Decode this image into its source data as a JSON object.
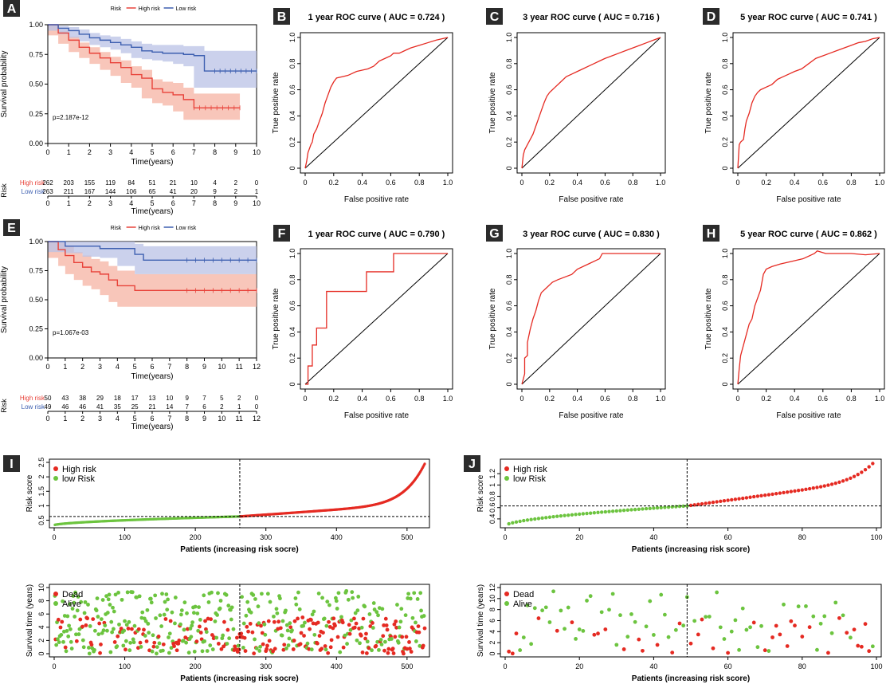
{
  "colors": {
    "high": "#e8433a",
    "low": "#3d5fb0",
    "green": "#6cc43f",
    "red": "#e52a22",
    "high_band": "#f5b3a3",
    "low_band": "#b9c2e6"
  },
  "chart_data": [
    {
      "id": "A",
      "type": "line",
      "badge": "A",
      "legend_title": "Risk",
      "legend": [
        "High risk",
        "Low risk"
      ],
      "xlabel": "Time(years)",
      "ylabel": "Survival probability",
      "xlim": [
        0,
        10
      ],
      "ylim": [
        0,
        1
      ],
      "xticks": [
        0,
        1,
        2,
        3,
        4,
        5,
        6,
        7,
        8,
        9,
        10
      ],
      "yticks": [
        0,
        0.25,
        0.5,
        0.75,
        1.0
      ],
      "ytick_labels": [
        "0.00",
        "0.25",
        "0.50",
        "0.75",
        "1.00"
      ],
      "annotation": "p=2.187e-12",
      "series": [
        {
          "name": "High risk",
          "x": [
            0,
            0.5,
            1,
            1.5,
            2,
            2.5,
            3,
            3.5,
            4,
            4.5,
            5,
            5.5,
            6,
            6.5,
            7,
            8,
            9.2
          ],
          "y": [
            1,
            0.93,
            0.87,
            0.81,
            0.76,
            0.72,
            0.68,
            0.64,
            0.58,
            0.55,
            0.46,
            0.43,
            0.41,
            0.37,
            0.3,
            0.3,
            0.3
          ],
          "lower": [
            1,
            0.91,
            0.84,
            0.77,
            0.72,
            0.67,
            0.62,
            0.57,
            0.51,
            0.47,
            0.38,
            0.34,
            0.32,
            0.27,
            0.2,
            0.2,
            0.2
          ],
          "upper": [
            1,
            0.95,
            0.9,
            0.85,
            0.81,
            0.77,
            0.73,
            0.7,
            0.65,
            0.62,
            0.54,
            0.52,
            0.51,
            0.47,
            0.42,
            0.42,
            0.42
          ]
        },
        {
          "name": "Low risk",
          "x": [
            0,
            0.5,
            1,
            1.5,
            2,
            2.5,
            3,
            3.5,
            4,
            4.5,
            5,
            5.5,
            6,
            6.5,
            7,
            7.5,
            8,
            9,
            10
          ],
          "y": [
            1,
            0.97,
            0.95,
            0.92,
            0.89,
            0.87,
            0.85,
            0.83,
            0.81,
            0.78,
            0.77,
            0.76,
            0.76,
            0.75,
            0.74,
            0.61,
            0.61,
            0.61,
            0.61
          ],
          "lower": [
            1,
            0.95,
            0.92,
            0.89,
            0.86,
            0.83,
            0.81,
            0.79,
            0.76,
            0.72,
            0.71,
            0.7,
            0.69,
            0.67,
            0.65,
            0.47,
            0.47,
            0.47,
            0.47
          ],
          "upper": [
            1,
            0.99,
            0.98,
            0.96,
            0.93,
            0.91,
            0.9,
            0.88,
            0.86,
            0.84,
            0.83,
            0.83,
            0.83,
            0.82,
            0.82,
            0.78,
            0.78,
            0.78,
            0.78
          ]
        }
      ],
      "risk_table": {
        "title": "Risk",
        "xlabel": "Time(years)",
        "xticks": [
          0,
          1,
          2,
          3,
          4,
          5,
          6,
          7,
          8,
          9,
          10
        ],
        "rows": [
          {
            "name": "High risk",
            "values": [
              "262",
              "203",
              "155",
              "119",
              "84",
              "51",
              "21",
              "10",
              "4",
              "2",
              "0"
            ]
          },
          {
            "name": "Low risk",
            "values": [
              "263",
              "211",
              "167",
              "144",
              "106",
              "65",
              "41",
              "20",
              "9",
              "2",
              "1"
            ]
          }
        ]
      }
    },
    {
      "id": "E",
      "type": "line",
      "badge": "E",
      "legend_title": "Risk",
      "legend": [
        "High risk",
        "Low risk"
      ],
      "xlabel": "Time(years)",
      "ylabel": "Survival probability",
      "xlim": [
        0,
        12
      ],
      "ylim": [
        0,
        1
      ],
      "xticks": [
        0,
        1,
        2,
        3,
        4,
        5,
        6,
        7,
        8,
        9,
        10,
        11,
        12
      ],
      "yticks": [
        0,
        0.25,
        0.5,
        0.75,
        1.0
      ],
      "ytick_labels": [
        "0.00",
        "0.25",
        "0.50",
        "0.75",
        "1.00"
      ],
      "annotation": "p=1.067e-03",
      "series": [
        {
          "name": "High risk",
          "x": [
            0,
            0.6,
            1,
            1.5,
            2,
            2.5,
            3,
            3.5,
            4,
            5,
            6,
            8,
            10,
            12
          ],
          "y": [
            1,
            0.93,
            0.88,
            0.82,
            0.78,
            0.74,
            0.72,
            0.67,
            0.62,
            0.58,
            0.58,
            0.58,
            0.58,
            0.58
          ],
          "lower": [
            1,
            0.86,
            0.79,
            0.72,
            0.67,
            0.62,
            0.59,
            0.54,
            0.48,
            0.44,
            0.44,
            0.44,
            0.44,
            0.44
          ],
          "upper": [
            1,
            0.99,
            0.96,
            0.91,
            0.88,
            0.85,
            0.83,
            0.79,
            0.75,
            0.72,
            0.72,
            0.72,
            0.72,
            0.72
          ]
        },
        {
          "name": "Low risk",
          "x": [
            0,
            1,
            2,
            3,
            4,
            5,
            5.5,
            6,
            8,
            10,
            12
          ],
          "y": [
            1,
            0.96,
            0.96,
            0.94,
            0.94,
            0.89,
            0.84,
            0.84,
            0.84,
            0.84,
            0.84
          ],
          "lower": [
            1,
            0.91,
            0.9,
            0.87,
            0.86,
            0.79,
            0.72,
            0.72,
            0.72,
            0.72,
            0.72
          ],
          "upper": [
            1,
            1,
            1,
            1,
            1,
            0.98,
            0.96,
            0.96,
            0.96,
            0.96,
            0.96
          ]
        }
      ],
      "risk_table": {
        "title": "Risk",
        "xlabel": "Time(years)",
        "xticks": [
          0,
          1,
          2,
          3,
          4,
          5,
          6,
          7,
          8,
          9,
          10,
          11,
          12
        ],
        "rows": [
          {
            "name": "High risk",
            "values": [
              "50",
              "43",
              "38",
              "29",
              "18",
              "17",
              "13",
              "10",
              "9",
              "7",
              "5",
              "2",
              "0"
            ]
          },
          {
            "name": "Low risk",
            "values": [
              "49",
              "46",
              "46",
              "41",
              "35",
              "25",
              "21",
              "14",
              "7",
              "6",
              "2",
              "1",
              "0"
            ]
          }
        ]
      }
    },
    {
      "id": "B",
      "type": "line",
      "badge": "B",
      "title": "1 year ROC curve ( AUC =  0.724 )",
      "xlabel": "False positive rate",
      "ylabel": "True positive rate",
      "xlim": [
        0,
        1
      ],
      "ylim": [
        0,
        1
      ],
      "xticks": [
        0,
        0.2,
        0.4,
        0.6,
        0.8,
        1.0
      ],
      "yticks": [
        0,
        0.2,
        0.4,
        0.6,
        0.8,
        1.0
      ],
      "ytick_labels": [
        "0",
        "0.2",
        "0.4",
        "0.6",
        "0.8",
        "1.0"
      ],
      "x": [
        0,
        0.01,
        0.02,
        0.04,
        0.05,
        0.06,
        0.08,
        0.1,
        0.12,
        0.14,
        0.16,
        0.18,
        0.2,
        0.22,
        0.26,
        0.3,
        0.32,
        0.36,
        0.4,
        0.44,
        0.48,
        0.52,
        0.56,
        0.6,
        0.62,
        0.66,
        0.7,
        0.74,
        0.8,
        0.86,
        0.92,
        0.96,
        1.0
      ],
      "y": [
        0,
        0.05,
        0.12,
        0.18,
        0.2,
        0.26,
        0.3,
        0.36,
        0.42,
        0.5,
        0.56,
        0.62,
        0.66,
        0.69,
        0.7,
        0.71,
        0.72,
        0.74,
        0.75,
        0.76,
        0.78,
        0.82,
        0.84,
        0.86,
        0.88,
        0.88,
        0.9,
        0.92,
        0.94,
        0.96,
        0.98,
        0.99,
        1.0
      ]
    },
    {
      "id": "C",
      "type": "line",
      "badge": "C",
      "title": "3 year ROC curve ( AUC =  0.716 )",
      "xlabel": "False positive rate",
      "ylabel": "True positive rate",
      "xlim": [
        0,
        1
      ],
      "ylim": [
        0,
        1
      ],
      "xticks": [
        0,
        0.2,
        0.4,
        0.6,
        0.8,
        1.0
      ],
      "yticks": [
        0,
        0.2,
        0.4,
        0.6,
        0.8,
        1.0
      ],
      "ytick_labels": [
        "0",
        "0.2",
        "0.4",
        "0.6",
        "0.8",
        "1.0"
      ],
      "x": [
        0,
        0.01,
        0.02,
        0.04,
        0.06,
        0.08,
        0.1,
        0.12,
        0.14,
        0.16,
        0.18,
        0.2,
        0.22,
        0.24,
        0.28,
        0.32,
        0.36,
        0.4,
        0.44,
        0.48,
        0.52,
        0.56,
        0.6,
        0.65,
        0.7,
        0.75,
        0.8,
        0.85,
        0.9,
        0.95,
        1.0
      ],
      "y": [
        0,
        0.1,
        0.14,
        0.18,
        0.22,
        0.26,
        0.32,
        0.38,
        0.44,
        0.5,
        0.55,
        0.58,
        0.6,
        0.62,
        0.66,
        0.7,
        0.72,
        0.74,
        0.76,
        0.78,
        0.8,
        0.82,
        0.84,
        0.86,
        0.88,
        0.9,
        0.92,
        0.94,
        0.96,
        0.98,
        1.0
      ]
    },
    {
      "id": "D",
      "type": "line",
      "badge": "D",
      "title": "5 year ROC curve ( AUC =  0.741 )",
      "xlabel": "False positive rate",
      "ylabel": "True positive rate",
      "xlim": [
        0,
        1
      ],
      "ylim": [
        0,
        1
      ],
      "xticks": [
        0,
        0.2,
        0.4,
        0.6,
        0.8,
        1.0
      ],
      "yticks": [
        0,
        0.2,
        0.4,
        0.6,
        0.8,
        1.0
      ],
      "ytick_labels": [
        "0",
        "0.2",
        "0.4",
        "0.6",
        "0.8",
        "1.0"
      ],
      "x": [
        0,
        0.01,
        0.02,
        0.04,
        0.05,
        0.06,
        0.08,
        0.1,
        0.12,
        0.14,
        0.16,
        0.2,
        0.24,
        0.28,
        0.32,
        0.36,
        0.4,
        0.45,
        0.5,
        0.55,
        0.6,
        0.65,
        0.7,
        0.75,
        0.8,
        0.85,
        0.9,
        0.95,
        1.0
      ],
      "y": [
        0,
        0.18,
        0.2,
        0.22,
        0.3,
        0.36,
        0.42,
        0.5,
        0.55,
        0.58,
        0.6,
        0.62,
        0.64,
        0.68,
        0.7,
        0.72,
        0.74,
        0.76,
        0.8,
        0.84,
        0.86,
        0.88,
        0.9,
        0.92,
        0.94,
        0.96,
        0.97,
        0.99,
        1.0
      ]
    },
    {
      "id": "F",
      "type": "line",
      "badge": "F",
      "title": "1 year ROC curve ( AUC =  0.790 )",
      "xlabel": "False positive rate",
      "ylabel": "True positive rate",
      "xlim": [
        0,
        1
      ],
      "ylim": [
        0,
        1
      ],
      "xticks": [
        0,
        0.2,
        0.4,
        0.6,
        0.8,
        1.0
      ],
      "yticks": [
        0,
        0.2,
        0.4,
        0.6,
        0.8,
        1.0
      ],
      "ytick_labels": [
        "0",
        "0.2",
        "0.4",
        "0.6",
        "0.8",
        "1.0"
      ],
      "x": [
        0,
        0.02,
        0.02,
        0.05,
        0.05,
        0.08,
        0.08,
        0.15,
        0.15,
        0.43,
        0.43,
        0.62,
        0.62,
        1.0
      ],
      "y": [
        0,
        0,
        0.14,
        0.14,
        0.3,
        0.3,
        0.43,
        0.43,
        0.71,
        0.71,
        0.86,
        0.86,
        1.0,
        1.0
      ]
    },
    {
      "id": "G",
      "type": "line",
      "badge": "G",
      "title": "3 year ROC curve ( AUC =  0.830 )",
      "xlabel": "False positive rate",
      "ylabel": "True positive rate",
      "xlim": [
        0,
        1
      ],
      "ylim": [
        0,
        1
      ],
      "xticks": [
        0,
        0.2,
        0.4,
        0.6,
        0.8,
        1.0
      ],
      "yticks": [
        0,
        0.2,
        0.4,
        0.6,
        0.8,
        1.0
      ],
      "ytick_labels": [
        "0",
        "0.2",
        "0.4",
        "0.6",
        "0.8",
        "1.0"
      ],
      "x": [
        0,
        0.02,
        0.02,
        0.04,
        0.04,
        0.06,
        0.08,
        0.1,
        0.12,
        0.14,
        0.18,
        0.22,
        0.26,
        0.36,
        0.4,
        0.48,
        0.56,
        0.58,
        0.7,
        1.0
      ],
      "y": [
        0,
        0.08,
        0.2,
        0.22,
        0.32,
        0.42,
        0.5,
        0.56,
        0.64,
        0.7,
        0.74,
        0.78,
        0.8,
        0.84,
        0.88,
        0.92,
        0.96,
        1.0,
        1.0,
        1.0
      ]
    },
    {
      "id": "H",
      "type": "line",
      "badge": "H",
      "title": "5 year ROC curve ( AUC =  0.862 )",
      "xlabel": "False positive rate",
      "ylabel": "True positive rate",
      "xlim": [
        0,
        1
      ],
      "ylim": [
        0,
        1
      ],
      "xticks": [
        0,
        0.2,
        0.4,
        0.6,
        0.8,
        1.0
      ],
      "yticks": [
        0,
        0.2,
        0.4,
        0.6,
        0.8,
        1.0
      ],
      "ytick_labels": [
        "0",
        "0.2",
        "0.4",
        "0.6",
        "0.8",
        "1.0"
      ],
      "x": [
        0,
        0.01,
        0.02,
        0.04,
        0.06,
        0.08,
        0.1,
        0.12,
        0.14,
        0.16,
        0.18,
        0.2,
        0.24,
        0.3,
        0.38,
        0.46,
        0.54,
        0.56,
        0.62,
        0.7,
        0.8,
        0.9,
        1.0
      ],
      "y": [
        0,
        0.12,
        0.22,
        0.3,
        0.38,
        0.46,
        0.5,
        0.6,
        0.66,
        0.72,
        0.84,
        0.88,
        0.9,
        0.92,
        0.94,
        0.96,
        1.0,
        1.02,
        1.0,
        1.0,
        1.0,
        0.99,
        1.0
      ]
    },
    {
      "id": "I_score",
      "type": "scatter",
      "badge": "I",
      "xlabel": "Patients (increasing risk socre)",
      "ylabel": "Risk score",
      "legend": [
        "High risk",
        "low Risk"
      ],
      "xlim": [
        0,
        525
      ],
      "ylim": [
        0.35,
        2.5
      ],
      "xticks": [
        0,
        100,
        200,
        300,
        400,
        500
      ],
      "yticks": [
        0.5,
        1.0,
        1.5,
        2.0,
        2.5
      ],
      "ytick_labels": [
        "0.5",
        "1",
        "1.5",
        "2",
        "2.5"
      ],
      "n": 525,
      "cutoff_index": 263,
      "cutoff_value": 0.63
    },
    {
      "id": "I_time",
      "type": "scatter",
      "xlabel": "Patients (increasing risk socre)",
      "ylabel": "Survival time (years)",
      "legend": [
        "Dead",
        "Alive"
      ],
      "xlim": [
        0,
        525
      ],
      "ylim": [
        0,
        10
      ],
      "xticks": [
        0,
        100,
        200,
        300,
        400,
        500
      ],
      "yticks": [
        0,
        2,
        4,
        6,
        8,
        10
      ],
      "ytick_labels": [
        "0",
        "2",
        "4",
        "6",
        "8",
        "10"
      ],
      "n": 525,
      "cutoff_index": 263
    },
    {
      "id": "J_score",
      "type": "scatter",
      "badge": "J",
      "xlabel": "Patients (increasing risk score)",
      "ylabel": "Risk score",
      "legend": [
        "High risk",
        "low Risk"
      ],
      "xlim": [
        0,
        100
      ],
      "ylim": [
        0.3,
        1.4
      ],
      "xticks": [
        0,
        20,
        40,
        60,
        80,
        100
      ],
      "yticks": [
        0.4,
        0.6,
        0.8,
        1.0,
        1.2
      ],
      "ytick_labels": [
        "0.4",
        "0.6",
        "0.8",
        "1",
        "1.2"
      ],
      "n": 99,
      "cutoff_index": 49,
      "cutoff_value": 0.63
    },
    {
      "id": "J_time",
      "type": "scatter",
      "xlabel": "Patients (increasing risk score)",
      "ylabel": "Survival time (years)",
      "legend": [
        "Dead",
        "Alive"
      ],
      "xlim": [
        0,
        100
      ],
      "ylim": [
        0,
        12
      ],
      "xticks": [
        0,
        20,
        40,
        60,
        80,
        100
      ],
      "yticks": [
        0,
        2,
        4,
        6,
        8,
        10,
        12
      ],
      "ytick_labels": [
        "0",
        "2",
        "4",
        "6",
        "8",
        "10",
        "12"
      ],
      "n": 99,
      "cutoff_index": 49
    }
  ]
}
